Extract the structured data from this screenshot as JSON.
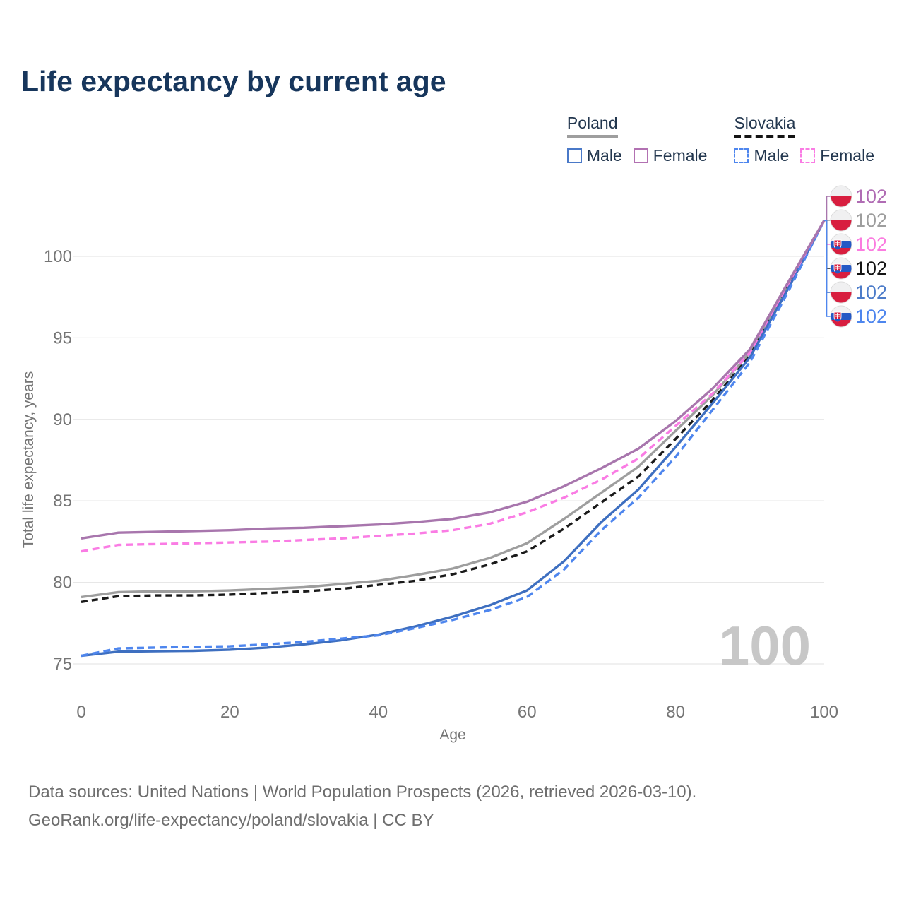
{
  "title": "Life expectancy by current age",
  "legend": {
    "groups": [
      {
        "country": "Poland",
        "underline_style": "solid",
        "underline_color": "#9e9e9e",
        "items": [
          {
            "label": "Male",
            "color": "#4a79c8",
            "dashed": false
          },
          {
            "label": "Female",
            "color": "#b271b2",
            "dashed": false
          }
        ]
      },
      {
        "country": "Slovakia",
        "underline_style": "dashed",
        "underline_color": "#141414",
        "items": [
          {
            "label": "Male",
            "color": "#4e86ee",
            "dashed": true
          },
          {
            "label": "Female",
            "color": "#fa7ce4",
            "dashed": true
          }
        ]
      }
    ]
  },
  "watermark": "100",
  "chart_data": {
    "type": "line",
    "title": "Life expectancy by current age",
    "xlabel": "Age",
    "ylabel": "Total life expectancy, years",
    "x": [
      0,
      5,
      10,
      15,
      20,
      25,
      30,
      35,
      40,
      45,
      50,
      55,
      60,
      65,
      70,
      75,
      80,
      85,
      90,
      95,
      100
    ],
    "xticks": [
      0,
      20,
      40,
      60,
      80,
      100
    ],
    "yticks": [
      75,
      80,
      85,
      90,
      95,
      100
    ],
    "xlim": [
      0,
      100
    ],
    "ylim": [
      74,
      103
    ],
    "grid": "horizontal-only",
    "legend_position": "top-right",
    "series": [
      {
        "id": "poland-female",
        "name": "Poland Female",
        "country": "Poland",
        "flag": "poland-flag-icon",
        "color": "#a876ad",
        "label_color": "#b06cb4",
        "dashed": false,
        "end_label": "102",
        "label_row": 0,
        "values": [
          82.7,
          83.05,
          83.1,
          83.15,
          83.2,
          83.3,
          83.35,
          83.45,
          83.55,
          83.7,
          83.9,
          84.3,
          84.95,
          85.9,
          87.0,
          88.2,
          89.9,
          91.9,
          94.3,
          98.3,
          102.2
        ]
      },
      {
        "id": "poland-total",
        "name": "Poland",
        "country": "Poland",
        "flag": "poland-flag-icon",
        "color": "#9e9e9e",
        "label_color": "#9e9e9e",
        "dashed": false,
        "end_label": "102",
        "label_row": 1,
        "values": [
          79.1,
          79.4,
          79.45,
          79.45,
          79.5,
          79.6,
          79.7,
          79.9,
          80.1,
          80.45,
          80.85,
          81.5,
          82.4,
          83.9,
          85.5,
          87.1,
          89.3,
          91.5,
          94.1,
          98.1,
          102.2
        ]
      },
      {
        "id": "slovakia-female",
        "name": "Slovakia Female",
        "country": "Slovakia",
        "flag": "slovakia-flag-icon",
        "color": "#fa7ce4",
        "label_color": "#fb7ce0",
        "dashed": true,
        "end_label": "102",
        "label_row": 2,
        "values": [
          81.9,
          82.3,
          82.35,
          82.4,
          82.45,
          82.5,
          82.6,
          82.7,
          82.85,
          83.0,
          83.2,
          83.6,
          84.3,
          85.2,
          86.3,
          87.6,
          89.6,
          91.6,
          94.1,
          98.2,
          102.2
        ]
      },
      {
        "id": "slovakia-total",
        "name": "Slovakia",
        "country": "Slovakia",
        "flag": "slovakia-flag-icon",
        "color": "#1a1a1a",
        "label_color": "#141414",
        "dashed": true,
        "end_label": "102",
        "label_row": 3,
        "values": [
          78.8,
          79.15,
          79.2,
          79.2,
          79.25,
          79.35,
          79.45,
          79.6,
          79.85,
          80.1,
          80.5,
          81.1,
          81.9,
          83.3,
          84.9,
          86.5,
          88.8,
          91.2,
          93.9,
          98.0,
          102.2
        ]
      },
      {
        "id": "poland-male",
        "name": "Poland Male",
        "country": "Poland",
        "flag": "poland-flag-icon",
        "color": "#3e6fc0",
        "label_color": "#4d7cc9",
        "dashed": false,
        "end_label": "102",
        "label_row": 4,
        "values": [
          75.5,
          75.75,
          75.78,
          75.8,
          75.87,
          76.0,
          76.2,
          76.45,
          76.8,
          77.3,
          77.9,
          78.6,
          79.5,
          81.3,
          83.7,
          85.7,
          88.3,
          91.0,
          93.8,
          97.9,
          102.2
        ]
      },
      {
        "id": "slovakia-male",
        "name": "Slovakia Male",
        "country": "Slovakia",
        "flag": "slovakia-flag-icon",
        "color": "#4e86ee",
        "label_color": "#4e86ee",
        "dashed": true,
        "end_label": "102",
        "label_row": 5,
        "values": [
          75.5,
          75.95,
          76.0,
          76.05,
          76.08,
          76.2,
          76.35,
          76.55,
          76.75,
          77.2,
          77.7,
          78.3,
          79.1,
          80.8,
          83.2,
          85.2,
          87.7,
          90.6,
          93.5,
          97.7,
          102.2
        ]
      }
    ]
  },
  "flags": {
    "poland": {
      "white": "#f0f0f1",
      "red": "#d81e3f"
    },
    "slovakia": {
      "white": "#f2f2f3",
      "blue": "#2458c5",
      "red": "#d81e3f"
    },
    "border": "#dcdcdc"
  },
  "footer": {
    "line1": "Data sources: United Nations | World Population Prospects (2026, retrieved 2026-03-10).",
    "line2": "GeoRank.org/life-expectancy/poland/slovakia | CC BY"
  }
}
